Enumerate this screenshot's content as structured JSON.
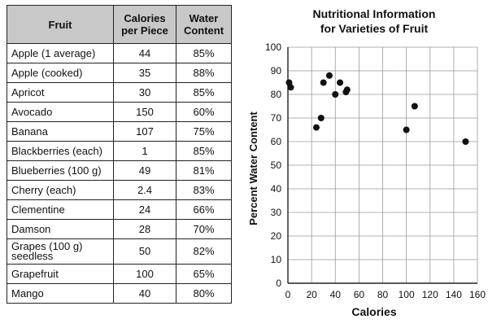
{
  "table": {
    "headers": [
      "Fruit",
      "Calories per Piece",
      "Water Content"
    ],
    "rows": [
      {
        "fruit": "Apple (1 average)",
        "calories": "44",
        "water": "85%"
      },
      {
        "fruit": "Apple (cooked)",
        "calories": "35",
        "water": "88%"
      },
      {
        "fruit": "Apricot",
        "calories": "30",
        "water": "85%"
      },
      {
        "fruit": "Avocado",
        "calories": "150",
        "water": "60%"
      },
      {
        "fruit": "Banana",
        "calories": "107",
        "water": "75%"
      },
      {
        "fruit": "Blackberries (each)",
        "calories": "1",
        "water": "85%"
      },
      {
        "fruit": "Blueberries (100 g)",
        "calories": "49",
        "water": "81%"
      },
      {
        "fruit": "Cherry (each)",
        "calories": "2.4",
        "water": "83%"
      },
      {
        "fruit": "Clementine",
        "calories": "24",
        "water": "66%"
      },
      {
        "fruit": "Damson",
        "calories": "28",
        "water": "70%"
      },
      {
        "fruit": "Grapes (100 g) seedless",
        "calories": "50",
        "water": "82%"
      },
      {
        "fruit": "Grapefruit",
        "calories": "100",
        "water": "65%"
      },
      {
        "fruit": "Mango",
        "calories": "40",
        "water": "80%"
      }
    ]
  },
  "chart_data": {
    "type": "scatter",
    "title": "Nutritional Information for Varieties of Fruit",
    "title_lines": [
      "Nutritional Information",
      "for Varieties of Fruit"
    ],
    "xlabel": "Calories",
    "ylabel": "Percent Water Content",
    "xlim": [
      0,
      160
    ],
    "ylim": [
      0,
      100
    ],
    "xticks": [
      0,
      20,
      40,
      60,
      80,
      100,
      120,
      140,
      160
    ],
    "yticks": [
      0,
      10,
      20,
      30,
      40,
      50,
      60,
      70,
      80,
      90,
      100
    ],
    "grid": true,
    "marker_color": "#111111",
    "grid_color": "#999999",
    "points": [
      {
        "x": 44,
        "y": 85
      },
      {
        "x": 35,
        "y": 88
      },
      {
        "x": 30,
        "y": 85
      },
      {
        "x": 150,
        "y": 60
      },
      {
        "x": 107,
        "y": 75
      },
      {
        "x": 1,
        "y": 85
      },
      {
        "x": 49,
        "y": 81
      },
      {
        "x": 2.4,
        "y": 83
      },
      {
        "x": 24,
        "y": 66
      },
      {
        "x": 28,
        "y": 70
      },
      {
        "x": 50,
        "y": 82
      },
      {
        "x": 100,
        "y": 65
      },
      {
        "x": 40,
        "y": 80
      }
    ]
  }
}
